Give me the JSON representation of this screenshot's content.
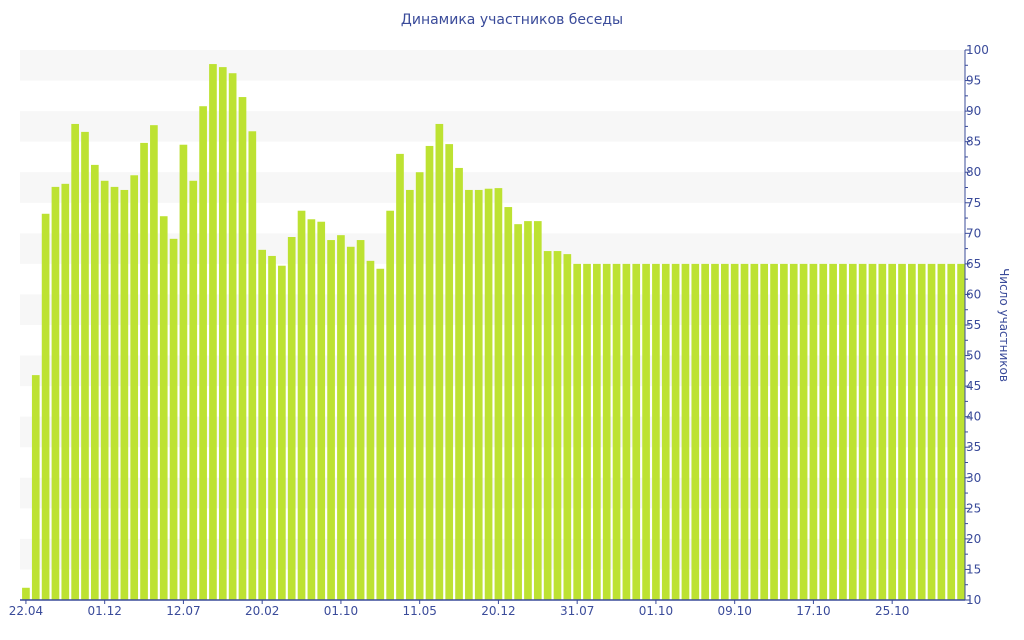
{
  "chart_data": {
    "type": "bar",
    "title": "Динамика участников беседы",
    "xlabel": "",
    "ylabel": "Число участников",
    "ylim": [
      10,
      100
    ],
    "y_ticks": [
      10,
      15,
      20,
      25,
      30,
      35,
      40,
      45,
      50,
      55,
      60,
      65,
      70,
      75,
      80,
      85,
      90,
      95,
      100
    ],
    "y_axis_side": "right",
    "grid": "alternating horizontal bands",
    "x_tick_labels": [
      "22.04",
      "01.12",
      "12.07",
      "20.02",
      "01.10",
      "11.05",
      "20.12",
      "31.07",
      "01.10",
      "09.10",
      "17.10",
      "25.10"
    ],
    "x_tick_every": 8,
    "values": [
      12,
      46.8,
      73.2,
      77.6,
      78.1,
      87.9,
      86.6,
      81.2,
      78.6,
      77.6,
      77.1,
      79.5,
      84.8,
      87.7,
      72.8,
      69.1,
      84.5,
      78.6,
      90.8,
      97.7,
      97.2,
      96.2,
      92.3,
      86.7,
      67.3,
      66.3,
      64.7,
      69.4,
      73.7,
      72.3,
      71.9,
      68.9,
      69.7,
      67.8,
      68.9,
      65.5,
      64.2,
      73.7,
      83,
      77.1,
      80,
      84.3,
      87.9,
      84.6,
      80.7,
      77.1,
      77.1,
      77.3,
      77.4,
      74.3,
      71.5,
      72,
      72,
      67.1,
      67.1,
      66.6,
      65,
      65,
      65,
      65,
      65,
      65,
      65,
      65,
      65,
      65,
      65,
      65,
      65,
      65,
      65,
      65,
      65,
      65,
      65,
      65,
      65,
      65,
      65,
      65,
      65,
      65,
      65,
      65,
      65,
      65,
      65,
      65,
      65,
      65,
      65,
      65,
      65,
      65,
      65,
      65
    ],
    "colors": {
      "bar": "#bde232",
      "axis": "#3a4b9a",
      "band": "#f7f7f7"
    }
  }
}
